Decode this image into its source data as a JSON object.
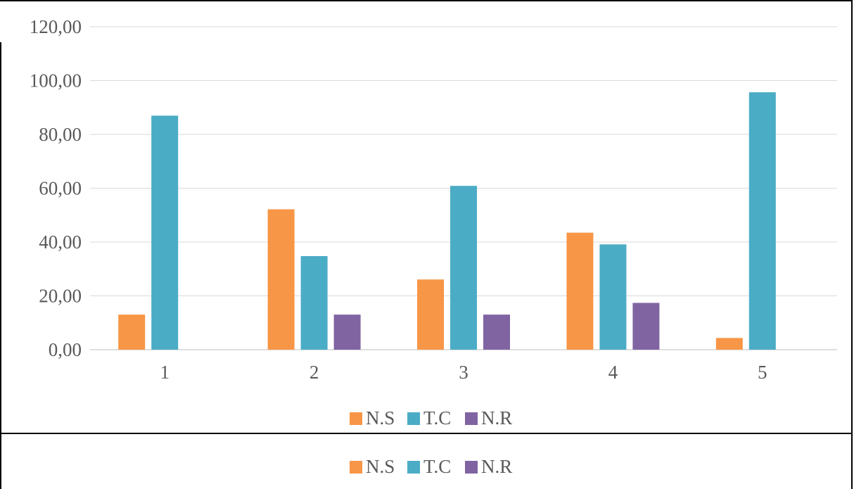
{
  "chart_data": {
    "type": "bar",
    "categories": [
      "1",
      "2",
      "3",
      "4",
      "5"
    ],
    "series": [
      {
        "name": "N.S",
        "color": "#F79646",
        "values": [
          13.04,
          52.17,
          26.09,
          43.48,
          4.35
        ]
      },
      {
        "name": "T.C",
        "color": "#4BACC6",
        "values": [
          86.96,
          34.78,
          60.87,
          39.13,
          95.65
        ]
      },
      {
        "name": "N.R",
        "color": "#8064A2",
        "values": [
          0,
          13.04,
          13.04,
          17.39,
          0
        ]
      }
    ],
    "y_ticks": [
      "0,00",
      "20,00",
      "40,00",
      "60,00",
      "80,00",
      "100,00",
      "120,00"
    ],
    "ylim": [
      0,
      120
    ],
    "grid": true,
    "legend": "bottom"
  },
  "extra_legend": {
    "items": [
      "N.S",
      "T.C",
      "N.R"
    ]
  }
}
